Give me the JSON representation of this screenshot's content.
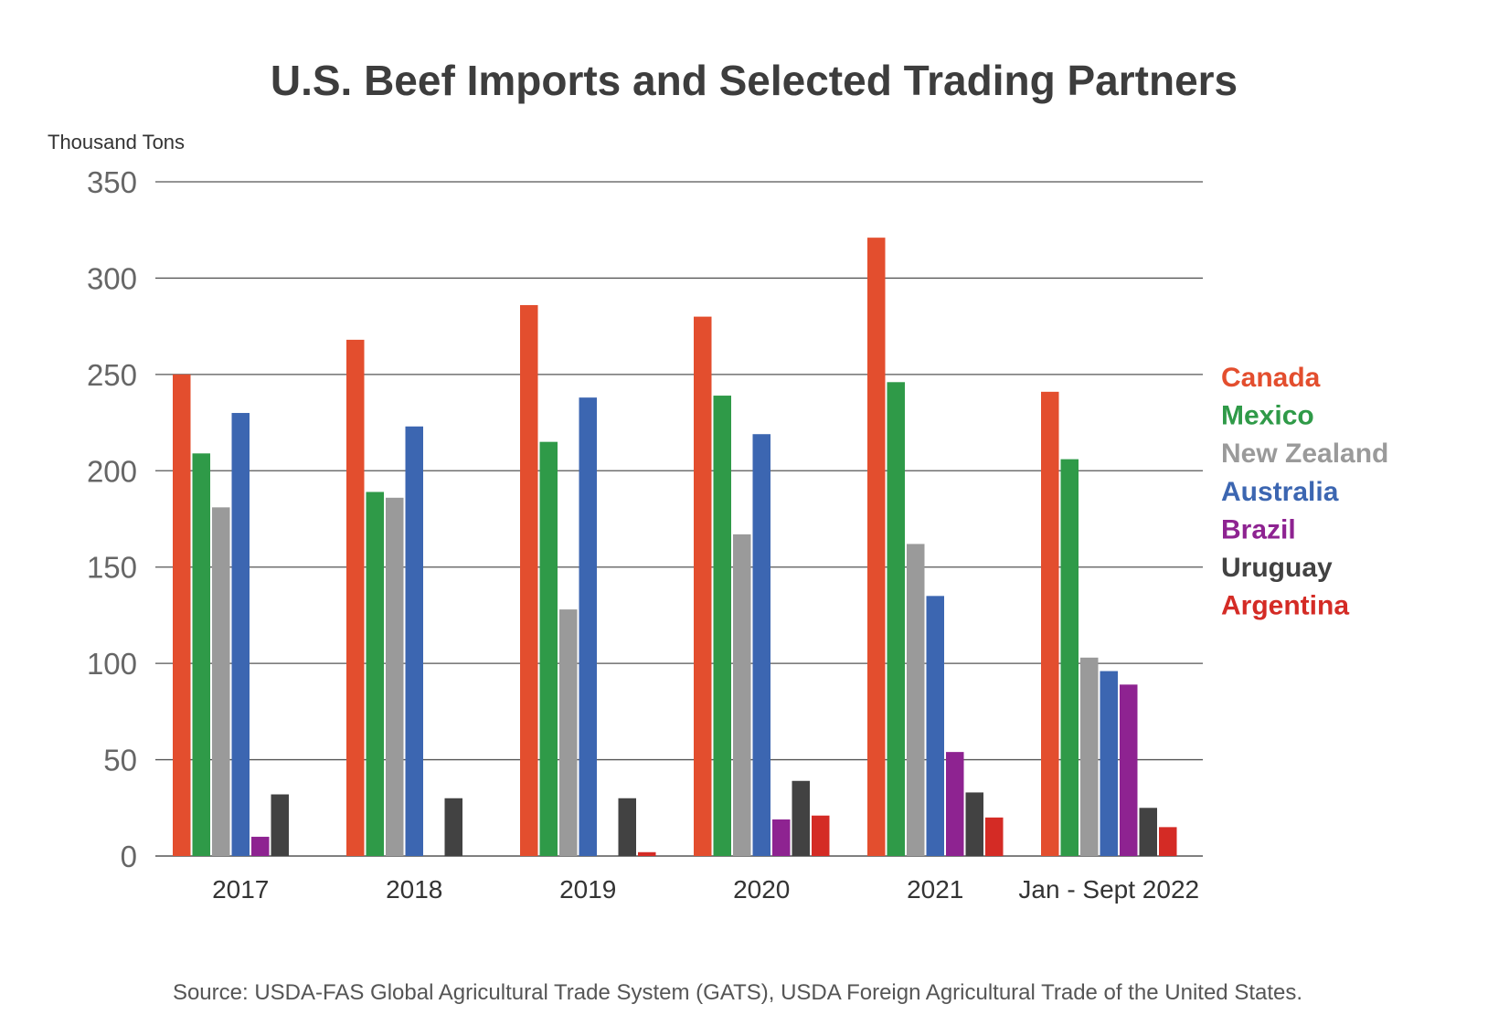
{
  "chart_data": {
    "type": "bar",
    "title": "U.S. Beef Imports and Selected Trading Partners",
    "ylabel": "Thousand Tons",
    "xlabel": "",
    "ylim": [
      0,
      350
    ],
    "yticks": [
      0,
      50,
      100,
      150,
      200,
      250,
      300,
      350
    ],
    "grid": true,
    "legend_position": "right",
    "categories": [
      "2017",
      "2018",
      "2019",
      "2020",
      "2021",
      "Jan - Sept 2022"
    ],
    "series": [
      {
        "name": "Canada",
        "color": "#e34e2e",
        "values": [
          250,
          268,
          286,
          280,
          321,
          241
        ]
      },
      {
        "name": "Mexico",
        "color": "#2f9a48",
        "values": [
          209,
          189,
          215,
          239,
          246,
          206
        ]
      },
      {
        "name": "New Zealand",
        "color": "#9a9a9a",
        "values": [
          181,
          186,
          128,
          167,
          162,
          103
        ]
      },
      {
        "name": "Australia",
        "color": "#3c66b1",
        "values": [
          230,
          223,
          238,
          219,
          135,
          96
        ]
      },
      {
        "name": "Brazil",
        "color": "#8e2391",
        "values": [
          10,
          0,
          0,
          19,
          54,
          89
        ]
      },
      {
        "name": "Uruguay",
        "color": "#424242",
        "values": [
          32,
          30,
          30,
          39,
          33,
          25
        ]
      },
      {
        "name": "Argentina",
        "color": "#d42b25",
        "values": [
          0,
          0,
          2,
          21,
          20,
          15
        ]
      }
    ],
    "source": "Source: USDA-FAS Global Agricultural Trade System (GATS), USDA Foreign Agricultural Trade of the United States."
  }
}
